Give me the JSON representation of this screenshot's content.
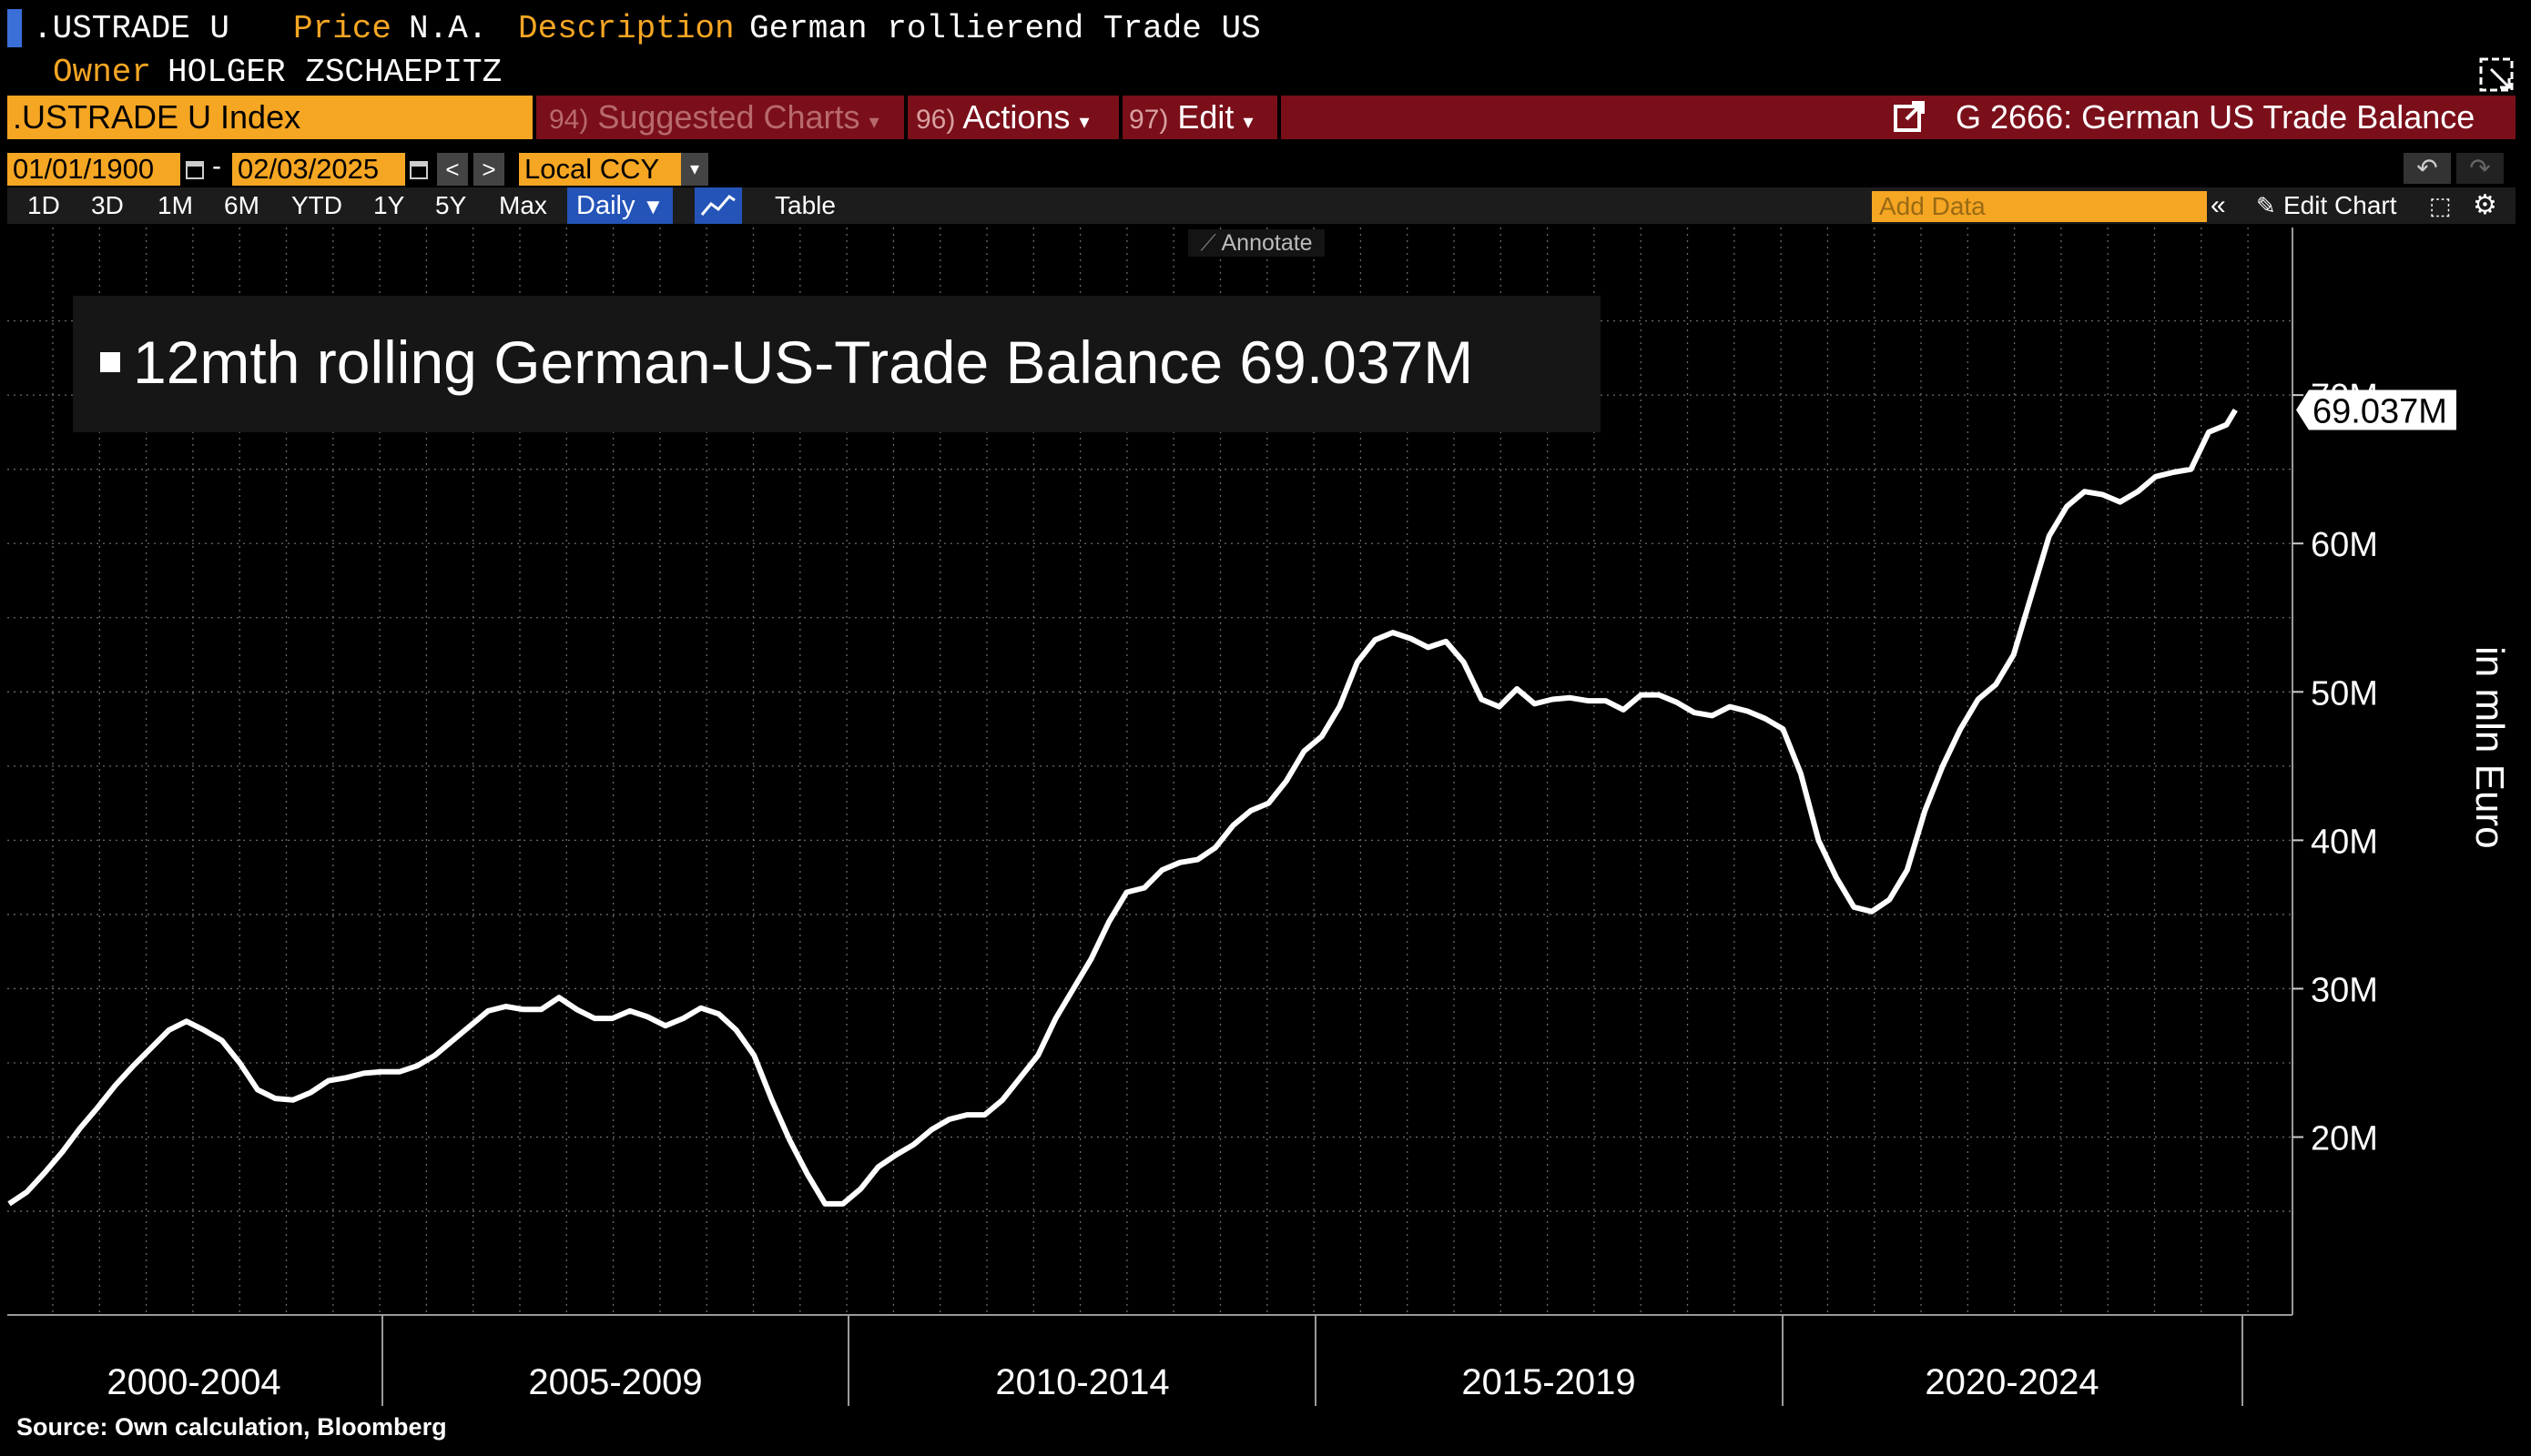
{
  "header": {
    "ticker": ".USTRADE U",
    "price_label": "Price",
    "price_value": "N.A.",
    "description_label": "Description",
    "description_value": "German rollierend Trade US",
    "owner_label": "Owner",
    "owner_value": "HOLGER ZSCHAEPITZ"
  },
  "toolbar": {
    "security": ".USTRADE U Index",
    "suggested_num": "94)",
    "suggested_label": "Suggested Charts",
    "actions_num": "96)",
    "actions_label": "Actions",
    "edit_num": "97)",
    "edit_label": "Edit",
    "chart_title": "G 2666: German US Trade Balance"
  },
  "range": {
    "start_date": "01/01/1900",
    "end_date": "02/03/2025",
    "currency": "Local CCY"
  },
  "periods": [
    "1D",
    "3D",
    "1M",
    "6M",
    "YTD",
    "1Y",
    "5Y",
    "Max"
  ],
  "frequency": "Daily",
  "table_label": "Table",
  "add_data_placeholder": "Add Data",
  "edit_chart_label": "Edit Chart",
  "annotate_label": "Annotate",
  "source_note": "Source: Own calculation, Bloomberg",
  "colors": {
    "accent": "#f5a623",
    "toolbar": "#7a0f1a",
    "line": "#ffffff",
    "background": "#000000"
  },
  "chart_data": {
    "type": "line",
    "xlabel": "",
    "ylabel": "in mln Euro",
    "x_ticks": [
      "2000-2004",
      "2005-2009",
      "2010-2014",
      "2015-2019",
      "2020-2024"
    ],
    "y_ticks": [
      "20M",
      "30M",
      "40M",
      "50M",
      "60M",
      "70M"
    ],
    "ylim": [
      12,
      77
    ],
    "xlim": [
      2000.0,
      2025.2
    ],
    "grid": true,
    "last_value_label": "69.037M",
    "series": [
      {
        "name": "12mth rolling German-US-Trade Balance",
        "last_value": "69.037M",
        "x": [
          2000.0,
          2000.2,
          2000.4,
          2000.6,
          2000.8,
          2001.0,
          2001.2,
          2001.4,
          2001.6,
          2001.8,
          2002.0,
          2002.2,
          2002.4,
          2002.6,
          2002.8,
          2003.0,
          2003.2,
          2003.4,
          2003.6,
          2003.8,
          2004.0,
          2004.2,
          2004.4,
          2004.6,
          2004.8,
          2005.0,
          2005.2,
          2005.4,
          2005.6,
          2005.8,
          2006.0,
          2006.2,
          2006.4,
          2006.6,
          2006.8,
          2007.0,
          2007.2,
          2007.4,
          2007.6,
          2007.8,
          2008.0,
          2008.2,
          2008.4,
          2008.6,
          2008.8,
          2009.0,
          2009.2,
          2009.4,
          2009.6,
          2009.8,
          2010.0,
          2010.2,
          2010.4,
          2010.6,
          2010.8,
          2011.0,
          2011.2,
          2011.4,
          2011.6,
          2011.8,
          2012.0,
          2012.2,
          2012.4,
          2012.6,
          2012.8,
          2013.0,
          2013.2,
          2013.4,
          2013.6,
          2013.8,
          2014.0,
          2014.2,
          2014.4,
          2014.6,
          2014.8,
          2015.0,
          2015.2,
          2015.4,
          2015.6,
          2015.8,
          2016.0,
          2016.2,
          2016.4,
          2016.6,
          2016.8,
          2017.0,
          2017.2,
          2017.4,
          2017.6,
          2017.8,
          2018.0,
          2018.2,
          2018.4,
          2018.6,
          2018.8,
          2019.0,
          2019.2,
          2019.4,
          2019.6,
          2019.8,
          2020.0,
          2020.2,
          2020.4,
          2020.6,
          2020.8,
          2021.0,
          2021.2,
          2021.4,
          2021.6,
          2021.8,
          2022.0,
          2022.2,
          2022.4,
          2022.6,
          2022.8,
          2023.0,
          2023.2,
          2023.4,
          2023.6,
          2023.8,
          2024.0,
          2024.2,
          2024.4,
          2024.6,
          2024.8,
          2025.0,
          2025.1
        ],
        "values": [
          15.5,
          16.3,
          17.6,
          19.0,
          20.6,
          22.0,
          23.5,
          24.8,
          26.0,
          27.2,
          27.8,
          27.2,
          26.5,
          25.0,
          23.2,
          22.6,
          22.5,
          23.0,
          23.8,
          24.0,
          24.3,
          24.4,
          24.4,
          24.8,
          25.5,
          26.5,
          27.5,
          28.5,
          28.8,
          28.6,
          28.6,
          29.4,
          28.6,
          28.0,
          28.0,
          28.5,
          28.1,
          27.5,
          28.0,
          28.7,
          28.3,
          27.2,
          25.5,
          22.5,
          19.8,
          17.5,
          15.5,
          15.5,
          16.5,
          18.0,
          18.8,
          19.5,
          20.5,
          21.2,
          21.5,
          21.5,
          22.5,
          24.0,
          25.5,
          28.0,
          30.0,
          32.0,
          34.5,
          36.5,
          36.8,
          38.0,
          38.5,
          38.7,
          39.5,
          41.0,
          42.0,
          42.5,
          44.0,
          46.0,
          47.0,
          49.0,
          52.0,
          53.5,
          54.0,
          53.6,
          53.0,
          53.4,
          52.0,
          49.5,
          49.0,
          50.2,
          49.2,
          49.5,
          49.6,
          49.4,
          49.4,
          48.8,
          49.8,
          49.8,
          49.3,
          48.6,
          48.4,
          49.0,
          48.7,
          48.2,
          47.5,
          44.5,
          40.0,
          37.5,
          35.5,
          35.2,
          36.0,
          38.0,
          42.0,
          45.0,
          47.5,
          49.5,
          50.5,
          52.5,
          56.5,
          60.5,
          62.5,
          63.5,
          63.3,
          62.8,
          63.5,
          64.5,
          64.8,
          65.0,
          67.5,
          68.0,
          69.0
        ]
      }
    ]
  }
}
